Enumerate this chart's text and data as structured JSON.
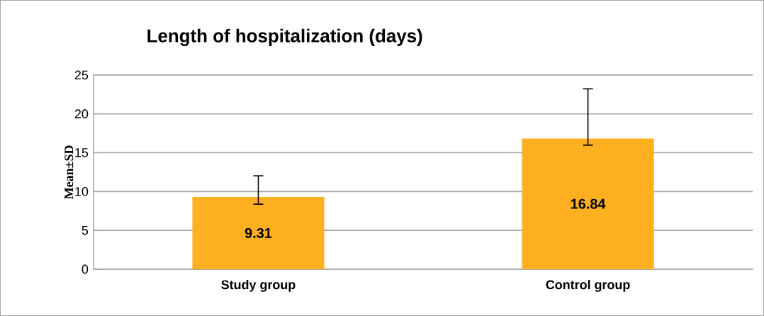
{
  "chart_data": {
    "type": "bar",
    "title": "Length of hospitalization (days)",
    "ylabel": "Mean±SD",
    "categories": [
      "Study group",
      "Control group"
    ],
    "values": [
      9.31,
      16.84
    ],
    "color": "#ffb020",
    "errors": [
      [
        8.3,
        12.1
      ],
      [
        15.9,
        23.3
      ]
    ],
    "ylim": [
      0,
      25
    ],
    "yticks": [
      0,
      5,
      10,
      15,
      20,
      25
    ],
    "grid": "y",
    "data_labels": true
  }
}
